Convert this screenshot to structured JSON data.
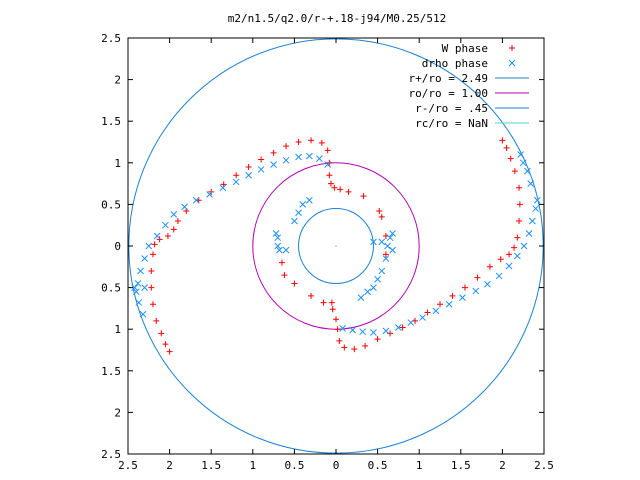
{
  "chart_data": {
    "type": "scatter",
    "title": "m2/n1.5/q2.0/r-+.18-j94/M0.25/512",
    "xlabel": "",
    "ylabel": "",
    "xlim": [
      -2.5,
      2.5
    ],
    "ylim": [
      -2.5,
      2.5
    ],
    "x_ticks": [
      -2.5,
      -2,
      -1.5,
      -1,
      -0.5,
      0,
      0.5,
      1,
      1.5,
      2,
      2.5
    ],
    "y_ticks": [
      -2.5,
      -2,
      -1.5,
      -1,
      -0.5,
      0,
      0.5,
      1,
      1.5,
      2,
      2.5
    ],
    "x_tick_labels": [
      "2.5",
      "2",
      "1.5",
      "1",
      "0.5",
      "0",
      "0.5",
      "1",
      "1.5",
      "2",
      "2.5"
    ],
    "y_tick_labels": [
      "2.5",
      "2",
      "1.5",
      "1",
      "0.5",
      "0",
      "0.5",
      "1",
      "1.5",
      "2",
      "2.5"
    ],
    "grid": false,
    "legend_position": "top-right",
    "legend": [
      {
        "label": "W phase",
        "kind": "plus-marker",
        "color": "#ff0000"
      },
      {
        "label": "drho phase",
        "kind": "cross-marker",
        "color": "#1e90ff"
      },
      {
        "label": "r+/ro = 2.49",
        "kind": "line",
        "color": "#1e82d2"
      },
      {
        "label": "ro/ro = 1.00",
        "kind": "line",
        "color": "#b400b4"
      },
      {
        "label": "r-/ro = .45",
        "kind": "line",
        "color": "#1e82d2"
      },
      {
        "label": "rc/ro = NaN",
        "kind": "line",
        "color": "#5ad2d2"
      }
    ],
    "circles": [
      {
        "name": "r+/ro = 2.49",
        "radius": 2.49,
        "color": "#1e82d2"
      },
      {
        "name": "ro/ro = 1.00",
        "radius": 1.0,
        "color": "#b400b4"
      },
      {
        "name": "r-/ro = .45",
        "radius": 0.45,
        "color": "#1e82d2"
      }
    ],
    "series": [
      {
        "name": "W phase",
        "marker": "plus",
        "color": "#ff0000",
        "points": [
          [
            -2.0,
            -1.27
          ],
          [
            -2.05,
            -1.18
          ],
          [
            -2.1,
            -1.05
          ],
          [
            -2.16,
            -0.9
          ],
          [
            -2.2,
            -0.7
          ],
          [
            -2.22,
            -0.5
          ],
          [
            -2.22,
            -0.3
          ],
          [
            -2.2,
            -0.1
          ],
          [
            -2.18,
            0.02
          ],
          [
            -2.12,
            0.08
          ],
          [
            -2.02,
            0.12
          ],
          [
            -1.95,
            0.2
          ],
          [
            -1.9,
            0.3
          ],
          [
            -1.8,
            0.42
          ],
          [
            -1.65,
            0.55
          ],
          [
            -1.5,
            0.65
          ],
          [
            -1.35,
            0.74
          ],
          [
            -1.2,
            0.85
          ],
          [
            -1.05,
            0.95
          ],
          [
            -0.9,
            1.04
          ],
          [
            -0.75,
            1.12
          ],
          [
            -0.6,
            1.2
          ],
          [
            -0.45,
            1.25
          ],
          [
            -0.3,
            1.27
          ],
          [
            -0.17,
            1.24
          ],
          [
            -0.1,
            1.15
          ],
          [
            -0.08,
            1.0
          ],
          [
            -0.08,
            0.85
          ],
          [
            -0.06,
            0.75
          ],
          [
            -0.02,
            0.7
          ],
          [
            2.0,
            1.27
          ],
          [
            2.05,
            1.18
          ],
          [
            2.1,
            1.05
          ],
          [
            2.15,
            0.9
          ],
          [
            2.2,
            0.7
          ],
          [
            2.21,
            0.5
          ],
          [
            2.2,
            0.3
          ],
          [
            2.18,
            0.1
          ],
          [
            2.14,
            -0.02
          ],
          [
            2.08,
            -0.1
          ],
          [
            1.98,
            -0.16
          ],
          [
            1.85,
            -0.25
          ],
          [
            1.7,
            -0.38
          ],
          [
            1.55,
            -0.5
          ],
          [
            1.4,
            -0.6
          ],
          [
            1.25,
            -0.7
          ],
          [
            1.1,
            -0.8
          ],
          [
            0.95,
            -0.9
          ],
          [
            0.8,
            -0.98
          ],
          [
            0.65,
            -1.05
          ],
          [
            0.5,
            -1.12
          ],
          [
            0.35,
            -1.2
          ],
          [
            0.22,
            -1.24
          ],
          [
            0.1,
            -1.22
          ],
          [
            0.04,
            -1.14
          ],
          [
            0.02,
            -1.0
          ],
          [
            0.0,
            -0.88
          ],
          [
            -0.04,
            -0.76
          ],
          [
            0.05,
            0.68
          ],
          [
            0.15,
            0.65
          ],
          [
            0.33,
            0.6
          ],
          [
            0.52,
            0.42
          ],
          [
            0.55,
            0.35
          ],
          [
            -0.05,
            -0.68
          ],
          [
            -0.15,
            -0.68
          ],
          [
            -0.3,
            -0.6
          ],
          [
            -0.5,
            -0.45
          ],
          [
            -0.62,
            -0.35
          ],
          [
            -0.65,
            -0.2
          ],
          [
            0.6,
            0.12
          ],
          [
            0.6,
            -0.1
          ]
        ]
      },
      {
        "name": "drho phase",
        "marker": "cross",
        "color": "#1e90ff",
        "points": [
          [
            -2.4,
            -0.55
          ],
          [
            -2.38,
            -0.45
          ],
          [
            -2.35,
            -0.3
          ],
          [
            -2.3,
            -0.15
          ],
          [
            -2.25,
            0.0
          ],
          [
            -2.15,
            0.12
          ],
          [
            -2.05,
            0.25
          ],
          [
            -1.95,
            0.38
          ],
          [
            -1.82,
            0.47
          ],
          [
            -1.68,
            0.55
          ],
          [
            -1.52,
            0.62
          ],
          [
            -1.36,
            0.7
          ],
          [
            -1.2,
            0.77
          ],
          [
            -1.05,
            0.85
          ],
          [
            -0.9,
            0.92
          ],
          [
            -0.75,
            0.98
          ],
          [
            -0.6,
            1.03
          ],
          [
            -0.45,
            1.07
          ],
          [
            -0.32,
            1.08
          ],
          [
            -0.2,
            1.05
          ],
          [
            -0.1,
            0.98
          ],
          [
            -2.42,
            -0.5
          ],
          [
            -2.37,
            -0.68
          ],
          [
            -2.32,
            -0.82
          ],
          [
            -2.3,
            -0.5
          ],
          [
            2.42,
            0.55
          ],
          [
            2.4,
            0.45
          ],
          [
            2.36,
            0.3
          ],
          [
            2.32,
            0.15
          ],
          [
            2.26,
            0.0
          ],
          [
            2.18,
            -0.12
          ],
          [
            2.08,
            -0.24
          ],
          [
            1.96,
            -0.36
          ],
          [
            1.82,
            -0.46
          ],
          [
            1.68,
            -0.54
          ],
          [
            1.52,
            -0.62
          ],
          [
            1.36,
            -0.7
          ],
          [
            1.2,
            -0.78
          ],
          [
            1.04,
            -0.86
          ],
          [
            0.9,
            -0.92
          ],
          [
            0.75,
            -0.98
          ],
          [
            0.6,
            -1.02
          ],
          [
            0.45,
            -1.04
          ],
          [
            0.32,
            -1.03
          ],
          [
            0.2,
            -1.01
          ],
          [
            0.08,
            -0.99
          ],
          [
            2.34,
            0.75
          ],
          [
            2.3,
            0.9
          ],
          [
            2.25,
            1.0
          ],
          [
            2.22,
            1.1
          ],
          [
            -0.7,
            0.0
          ],
          [
            -0.7,
            0.1
          ],
          [
            -0.68,
            -0.05
          ],
          [
            -0.6,
            -0.05
          ],
          [
            -0.72,
            0.15
          ],
          [
            -0.5,
            0.3
          ],
          [
            -0.45,
            0.4
          ],
          [
            -0.4,
            0.5
          ],
          [
            -0.32,
            0.55
          ],
          [
            0.45,
            0.05
          ],
          [
            0.55,
            0.05
          ],
          [
            0.62,
            0.0
          ],
          [
            0.65,
            0.1
          ],
          [
            0.68,
            0.15
          ],
          [
            0.68,
            -0.05
          ],
          [
            0.6,
            -0.15
          ],
          [
            0.55,
            -0.3
          ],
          [
            0.5,
            -0.4
          ],
          [
            0.45,
            -0.5
          ],
          [
            0.38,
            -0.55
          ],
          [
            0.3,
            -0.62
          ]
        ]
      }
    ]
  }
}
